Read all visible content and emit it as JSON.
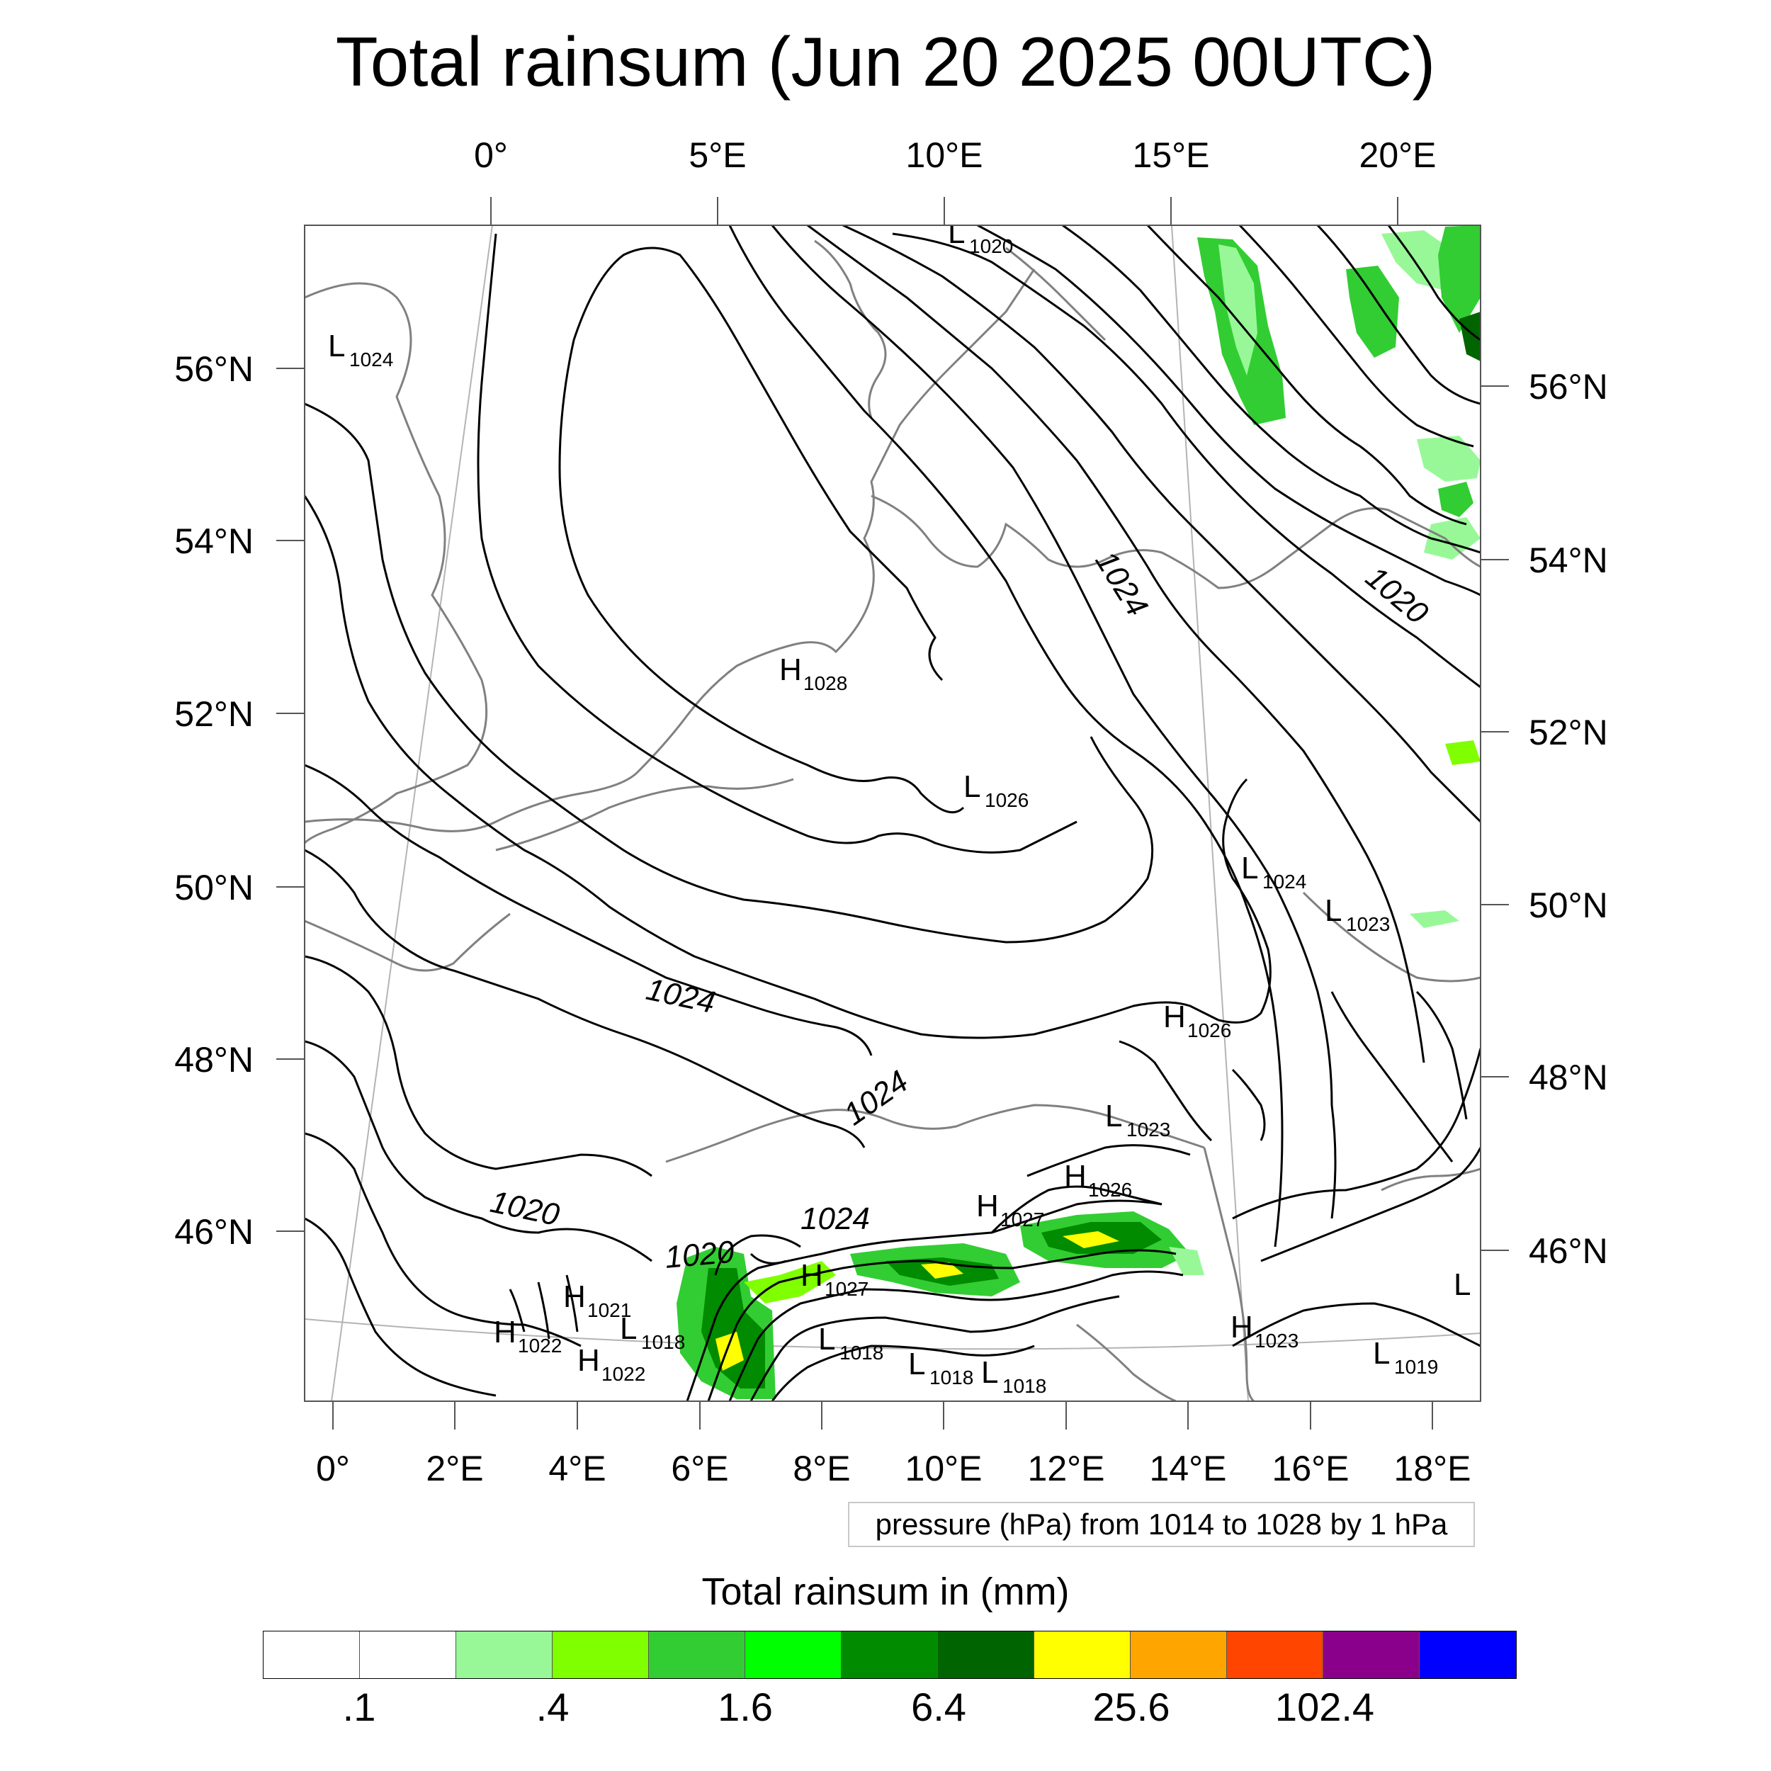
{
  "title": "Total rainsum (Jun 20 2025 00UTC)",
  "map": {
    "top_lon_labels": [
      "0°",
      "5°E",
      "10°E",
      "15°E",
      "20°E"
    ],
    "bottom_lon_labels": [
      "0°",
      "2°E",
      "4°E",
      "6°E",
      "8°E",
      "10°E",
      "12°E",
      "14°E",
      "16°E",
      "18°E"
    ],
    "left_lat_labels": [
      "56°N",
      "54°N",
      "52°N",
      "50°N",
      "48°N",
      "46°N"
    ],
    "right_lat_labels": [
      "56°N",
      "54°N",
      "52°N",
      "50°N",
      "48°N",
      "46°N"
    ],
    "contour_labels": [
      "1024",
      "1020",
      "1024",
      "1024",
      "1024",
      "1020",
      "1020"
    ],
    "pressure_centers": [
      {
        "type": "L",
        "value": "1020"
      },
      {
        "type": "L",
        "value": "1024"
      },
      {
        "type": "H",
        "value": "1028"
      },
      {
        "type": "L",
        "value": "1026"
      },
      {
        "type": "L",
        "value": "1024"
      },
      {
        "type": "L",
        "value": "1023"
      },
      {
        "type": "H",
        "value": "1026"
      },
      {
        "type": "L",
        "value": "1023"
      },
      {
        "type": "H",
        "value": "1026"
      },
      {
        "type": "H",
        "value": "1027"
      },
      {
        "type": "H",
        "value": "1027"
      },
      {
        "type": "H",
        "value": "1021"
      },
      {
        "type": "L",
        "value": "1018"
      },
      {
        "type": "H",
        "value": "1022"
      },
      {
        "type": "H",
        "value": "1022"
      },
      {
        "type": "L",
        "value": "1018"
      },
      {
        "type": "L",
        "value": "1018"
      },
      {
        "type": "L",
        "value": "1018"
      },
      {
        "type": "H",
        "value": "1023"
      },
      {
        "type": "L",
        "value": "1019"
      },
      {
        "type": "L",
        "value": ""
      }
    ]
  },
  "contour_note": "pressure (hPa) from 1014 to 1028 by 1 hPa",
  "colorbar": {
    "title": "Total rainsum in (mm)",
    "colors": [
      "#ffffff",
      "#ffffff",
      "#98f898",
      "#7fff00",
      "#32cd32",
      "#00ff00",
      "#008b00",
      "#006400",
      "#ffff00",
      "#ffa500",
      "#ff4500",
      "#8b008b",
      "#0000ff"
    ],
    "labels": [
      ".1",
      ".4",
      "1.6",
      "6.4",
      "25.6",
      "102.4"
    ]
  },
  "colors": {
    "contour": "#000000",
    "coastline": "#808080",
    "graticule": "#b4b4b4"
  }
}
